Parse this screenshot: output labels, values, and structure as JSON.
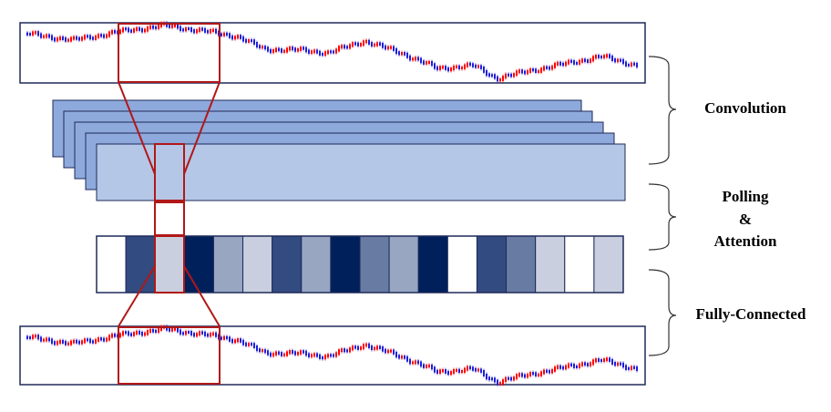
{
  "labels": {
    "convolution": "Convolution",
    "polling": "Polling",
    "ampersand": "&",
    "attention": "Attention",
    "fully_connected": "Fully-Connected"
  },
  "colors": {
    "outline": "#1f2a5a",
    "highlight": "#b01818",
    "feature_map_back": "#8ea9db",
    "feature_map_front": "#b4c7e7",
    "bull_candle": "#ff0000",
    "bear_candle": "#1f1fd6",
    "bracket": "#333333"
  },
  "attention_cells": [
    "#ffffff",
    "#324b80",
    "#c9cfde",
    "#00205b",
    "#98a6c2",
    "#c9cfde",
    "#324b80",
    "#98a6c2",
    "#00205b",
    "#687ba2",
    "#98a6c2",
    "#00205b",
    "#ffffff",
    "#324b80",
    "#687ba2",
    "#c9cfde",
    "#ffffff",
    "#c9cfde"
  ]
}
